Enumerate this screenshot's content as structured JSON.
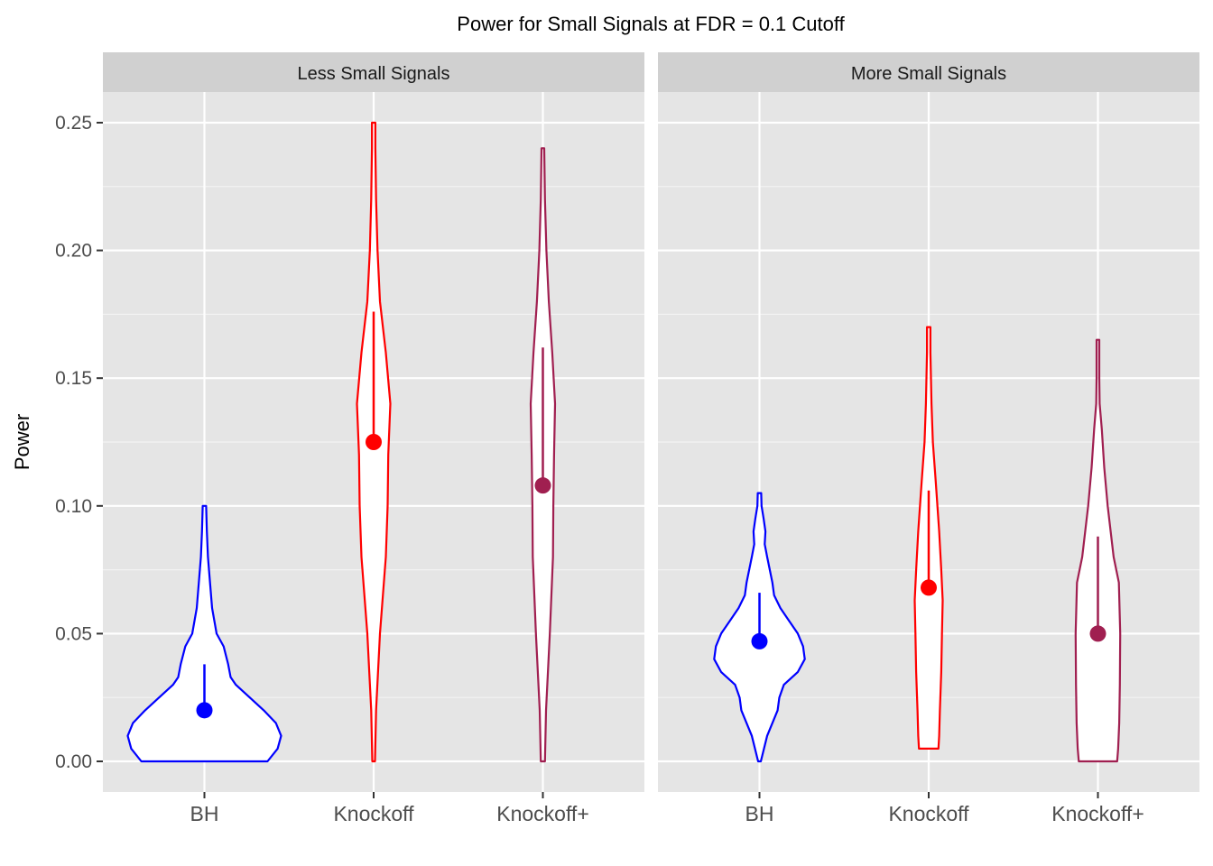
{
  "chart_data": {
    "type": "violin",
    "title": "Power for Small Signals at FDR = 0.1 Cutoff",
    "xlabel": "",
    "ylabel": "Power",
    "ylim": [
      -0.012,
      0.262
    ],
    "yticks": [
      0.0,
      0.05,
      0.1,
      0.15,
      0.2,
      0.25
    ],
    "ytick_labels": [
      "0.00",
      "0.05",
      "0.10",
      "0.15",
      "0.20",
      "0.25"
    ],
    "categories": [
      "BH",
      "Knockoff",
      "Knockoff+"
    ],
    "colors": {
      "BH": "#0000ff",
      "Knockoff": "#ff0000",
      "Knockoff+": "#a01f50"
    },
    "grid": true,
    "panel_background": "#e5e5e5",
    "strip_background": "#d0d0d0",
    "panels": [
      {
        "name": "Less Small Signals",
        "violins": [
          {
            "category": "BH",
            "mean": 0.02,
            "upper": 0.038,
            "min": 0.0,
            "max": 0.1,
            "profile": [
              [
                0.0,
                0.181
              ],
              [
                0.005,
                0.21
              ],
              [
                0.01,
                0.22
              ],
              [
                0.015,
                0.205
              ],
              [
                0.02,
                0.17
              ],
              [
                0.025,
                0.13
              ],
              [
                0.03,
                0.09
              ],
              [
                0.033,
                0.075
              ],
              [
                0.038,
                0.068
              ],
              [
                0.045,
                0.055
              ],
              [
                0.05,
                0.035
              ],
              [
                0.06,
                0.022
              ],
              [
                0.07,
                0.016
              ],
              [
                0.08,
                0.01
              ],
              [
                0.09,
                0.007
              ],
              [
                0.1,
                0.005
              ]
            ]
          },
          {
            "category": "Knockoff",
            "mean": 0.125,
            "upper": 0.176,
            "min": 0.0,
            "max": 0.25,
            "profile": [
              [
                0.0,
                0.004
              ],
              [
                0.02,
                0.007
              ],
              [
                0.05,
                0.018
              ],
              [
                0.08,
                0.035
              ],
              [
                0.1,
                0.04
              ],
              [
                0.12,
                0.042
              ],
              [
                0.14,
                0.048
              ],
              [
                0.16,
                0.035
              ],
              [
                0.18,
                0.018
              ],
              [
                0.2,
                0.011
              ],
              [
                0.22,
                0.007
              ],
              [
                0.24,
                0.005
              ],
              [
                0.25,
                0.005
              ]
            ]
          },
          {
            "category": "Knockoff+",
            "mean": 0.108,
            "upper": 0.162,
            "min": 0.0,
            "max": 0.24,
            "profile": [
              [
                0.0,
                0.006
              ],
              [
                0.02,
                0.009
              ],
              [
                0.05,
                0.02
              ],
              [
                0.08,
                0.029
              ],
              [
                0.1,
                0.03
              ],
              [
                0.12,
                0.032
              ],
              [
                0.14,
                0.035
              ],
              [
                0.16,
                0.027
              ],
              [
                0.18,
                0.017
              ],
              [
                0.2,
                0.01
              ],
              [
                0.22,
                0.006
              ],
              [
                0.24,
                0.004
              ]
            ]
          }
        ]
      },
      {
        "name": "More Small Signals",
        "violins": [
          {
            "category": "BH",
            "mean": 0.047,
            "upper": 0.066,
            "min": 0.0,
            "max": 0.105,
            "profile": [
              [
                0.0,
                0.004
              ],
              [
                0.01,
                0.022
              ],
              [
                0.02,
                0.052
              ],
              [
                0.025,
                0.057
              ],
              [
                0.03,
                0.07
              ],
              [
                0.035,
                0.11
              ],
              [
                0.04,
                0.13
              ],
              [
                0.045,
                0.125
              ],
              [
                0.05,
                0.11
              ],
              [
                0.055,
                0.085
              ],
              [
                0.06,
                0.06
              ],
              [
                0.065,
                0.042
              ],
              [
                0.07,
                0.037
              ],
              [
                0.08,
                0.022
              ],
              [
                0.085,
                0.015
              ],
              [
                0.09,
                0.017
              ],
              [
                0.095,
                0.012
              ],
              [
                0.1,
                0.006
              ],
              [
                0.105,
                0.005
              ]
            ]
          },
          {
            "category": "Knockoff",
            "mean": 0.068,
            "upper": 0.106,
            "min": 0.005,
            "max": 0.17,
            "profile": [
              [
                0.005,
                0.028
              ],
              [
                0.01,
                0.03
              ],
              [
                0.02,
                0.032
              ],
              [
                0.035,
                0.036
              ],
              [
                0.05,
                0.038
              ],
              [
                0.063,
                0.04
              ],
              [
                0.075,
                0.036
              ],
              [
                0.09,
                0.03
              ],
              [
                0.11,
                0.02
              ],
              [
                0.125,
                0.012
              ],
              [
                0.14,
                0.008
              ],
              [
                0.16,
                0.005
              ],
              [
                0.17,
                0.005
              ]
            ]
          },
          {
            "category": "Knockoff+",
            "mean": 0.05,
            "upper": 0.088,
            "min": 0.0,
            "max": 0.165,
            "profile": [
              [
                0.0,
                0.055
              ],
              [
                0.005,
                0.058
              ],
              [
                0.015,
                0.061
              ],
              [
                0.03,
                0.063
              ],
              [
                0.05,
                0.064
              ],
              [
                0.07,
                0.06
              ],
              [
                0.08,
                0.045
              ],
              [
                0.1,
                0.028
              ],
              [
                0.115,
                0.018
              ],
              [
                0.13,
                0.011
              ],
              [
                0.14,
                0.005
              ],
              [
                0.15,
                0.004
              ],
              [
                0.165,
                0.004
              ]
            ]
          }
        ]
      }
    ]
  }
}
